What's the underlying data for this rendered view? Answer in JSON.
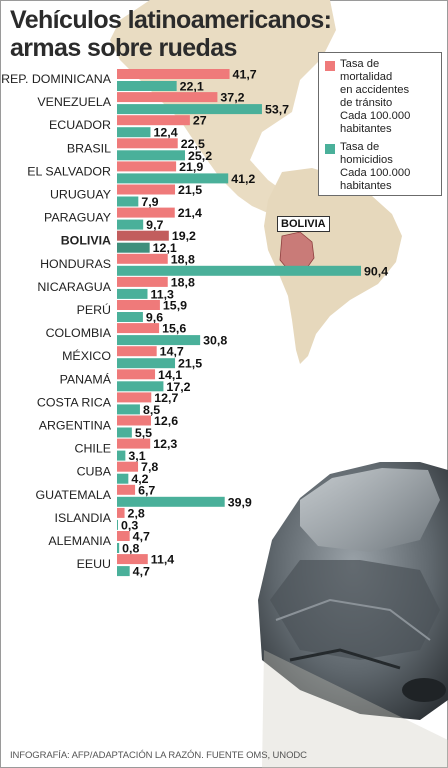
{
  "title": "Vehículos latinoamericanos:\narmas sobre ruedas",
  "legend": [
    {
      "label": "Tasa de\nmortalidad\nen accidentes\nde tránsito\nCada 100.000\nhabitantes",
      "color": "#ef7a7a"
    },
    {
      "label": "Tasa de\nhomicidios\nCada 100.000\nhabitantes",
      "color": "#4ab09a"
    }
  ],
  "map_label": "BOLIVIA",
  "source": "INFOGRAFÍA: AFP/ADAPTACIÓN LA RAZÓN. FUENTE OMS, UNODC",
  "chart_data": {
    "type": "bar",
    "orientation": "horizontal",
    "title": "Vehículos latinoamericanos: armas sobre ruedas",
    "highlight": "BOLIVIA",
    "categories": [
      "REP. DOMINICANA",
      "VENEZUELA",
      "ECUADOR",
      "BRASIL",
      "EL SALVADOR",
      "URUGUAY",
      "PARAGUAY",
      "BOLIVIA",
      "HONDURAS",
      "NICARAGUA",
      "PERÚ",
      "COLOMBIA",
      "MÉXICO",
      "PANAMÁ",
      "COSTA RICA",
      "ARGENTINA",
      "CHILE",
      "CUBA",
      "GUATEMALA",
      "ISLANDIA",
      "ALEMANIA",
      "EEUU"
    ],
    "series": [
      {
        "name": "Tasa de mortalidad en accidentes de tránsito Cada 100.000 habitantes",
        "color": "#ef7a7a",
        "labels": [
          "41,7",
          "37,2",
          "27",
          "22,5",
          "21,9",
          "21,5",
          "21,4",
          "19,2",
          "18,8",
          "18,8",
          "15,9",
          "15,6",
          "14,7",
          "14,1",
          "12,7",
          "12,6",
          "12,3",
          "7,8",
          "6,7",
          "2,8",
          "4,7",
          "11,4"
        ],
        "values": [
          41.7,
          37.2,
          27,
          22.5,
          21.9,
          21.5,
          21.4,
          19.2,
          18.8,
          18.8,
          15.9,
          15.6,
          14.7,
          14.1,
          12.7,
          12.6,
          12.3,
          7.8,
          6.7,
          2.8,
          4.7,
          11.4
        ]
      },
      {
        "name": "Tasa de homicidios Cada 100.000 habitantes",
        "color": "#4ab09a",
        "labels": [
          "22,1",
          "53,7",
          "12,4",
          "25,2",
          "41,2",
          "7,9",
          "9,7",
          "12,1",
          "90,4",
          "11,3",
          "9,6",
          "30,8",
          "21,5",
          "17,2",
          "8,5",
          "5,5",
          "3,1",
          "4,2",
          "39,9",
          "0,3",
          "0,8",
          "4,7"
        ],
        "values": [
          22.1,
          53.7,
          12.4,
          25.2,
          41.2,
          7.9,
          9.7,
          12.1,
          90.4,
          11.3,
          9.6,
          30.8,
          21.5,
          17.2,
          8.5,
          5.5,
          3.1,
          4.2,
          39.9,
          0.3,
          0.8,
          4.7
        ]
      }
    ],
    "xlim": [
      0,
      90.4
    ],
    "xlabel": "",
    "ylabel": "",
    "grid": false,
    "legend_position": "top-right"
  }
}
